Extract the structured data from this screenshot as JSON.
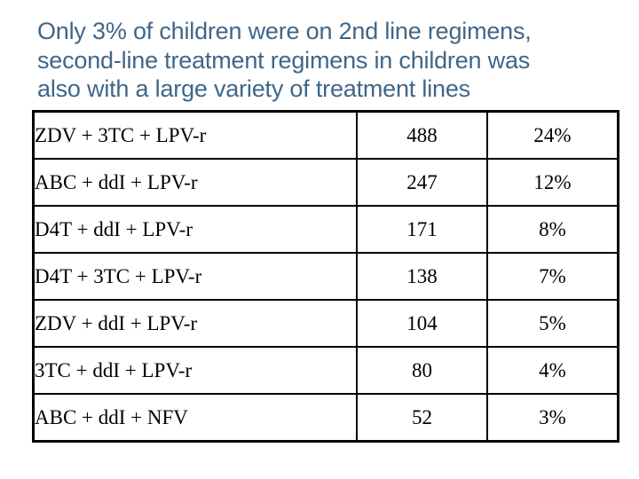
{
  "title": {
    "color": "#3f6689",
    "lines": [
      "Only 3% of children were on 2nd line regimens,",
      "second-line treatment regimens in children was",
      "also with a large variety of treatment lines"
    ]
  },
  "table": {
    "rows": [
      {
        "regimen": "ZDV + 3TC + LPV-r",
        "count": "488",
        "percent": "24%"
      },
      {
        "regimen": "ABC + ddI + LPV-r",
        "count": "247",
        "percent": "12%"
      },
      {
        "regimen": "D4T + ddI + LPV-r",
        "count": "171",
        "percent": "8%"
      },
      {
        "regimen": "D4T + 3TC + LPV-r",
        "count": "138",
        "percent": "7%"
      },
      {
        "regimen": "ZDV + ddI + LPV-r",
        "count": "104",
        "percent": "5%"
      },
      {
        "regimen": "3TC + ddI + LPV-r",
        "count": "80",
        "percent": "4%"
      },
      {
        "regimen": "ABC + ddI + NFV",
        "count": "52",
        "percent": "3%"
      }
    ]
  }
}
